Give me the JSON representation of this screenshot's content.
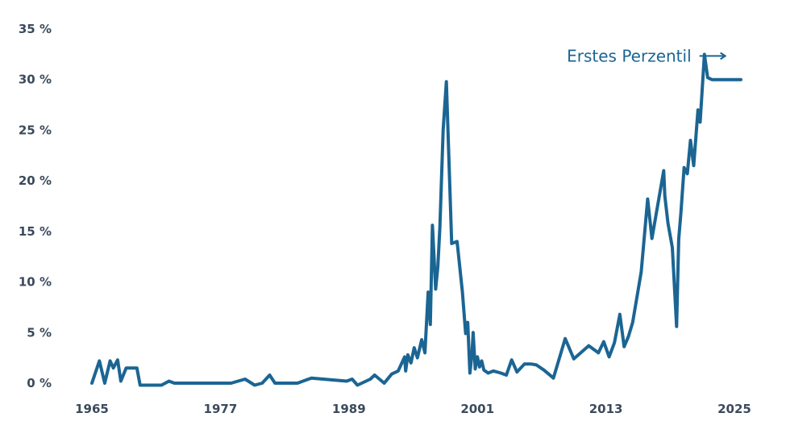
{
  "chart_data": {
    "type": "line",
    "title": "",
    "xlabel": "",
    "ylabel": "",
    "x_ticks": [
      "1965",
      "1977",
      "1989",
      "2001",
      "2013",
      "2025"
    ],
    "y_ticks": [
      "0 %",
      "5 %",
      "10 %",
      "15 %",
      "20 %",
      "25 %",
      "30 %",
      "35 %"
    ],
    "xlim": [
      1965,
      2025
    ],
    "ylim": [
      0,
      35
    ],
    "grid": false,
    "line_color": "#1b6593",
    "annotation": {
      "text": "Erstes Perzentil",
      "points_to": [
        2025.5,
        32.5
      ]
    },
    "series": [
      {
        "x": [
          1965.0,
          1965.7,
          1966.2,
          1966.7,
          1967.0,
          1967.4,
          1967.7,
          1968.2,
          1969.2,
          1969.5,
          1971.5,
          1972.2,
          1972.7,
          1974.5,
          1978.0,
          1979.3,
          1980.2,
          1980.9,
          1981.6,
          1982.1,
          1984.2,
          1985.5,
          1988.8,
          1989.3,
          1989.8,
          1991.0,
          1991.4,
          1992.3,
          1993.0,
          1993.6,
          1994.2,
          1994.3,
          1994.5,
          1994.8,
          1995.1,
          1995.4,
          1995.8,
          1996.1,
          1996.4,
          1996.6,
          1996.8,
          1997.1,
          1997.3,
          1997.5,
          1997.8,
          1998.1,
          1998.6,
          1999.1,
          1999.6,
          1999.9,
          2000.1,
          2000.3,
          2000.5,
          2000.6,
          2000.8,
          2001.0,
          2001.2,
          2001.4,
          2001.6,
          2002.0,
          2002.5,
          2003.2,
          2003.7,
          2004.2,
          2004.7,
          2005.4,
          2006.0,
          2006.5,
          2007.2,
          2008.1,
          2009.2,
          2010.0,
          2011.4,
          2012.3,
          2012.8,
          2013.3,
          2013.8,
          2014.3,
          2014.7,
          2015.1,
          2015.5,
          2016.3,
          2016.9,
          2017.3,
          2018.4,
          2018.5,
          2018.8,
          2019.2,
          2019.6,
          2019.8,
          2020.0,
          2020.3,
          2020.6,
          2020.9,
          2021.2,
          2021.6,
          2021.8,
          2022.2,
          2022.5,
          2022.9,
          2023.0,
          2023.3,
          2023.6,
          2023.9,
          2024.2,
          2024.6,
          2024.8,
          2025.2,
          2025.6
        ],
        "values": [
          0.0,
          2.2,
          0.0,
          2.2,
          1.5,
          2.3,
          0.2,
          1.5,
          1.5,
          -0.2,
          -0.2,
          0.2,
          0.0,
          0.0,
          0.0,
          0.4,
          -0.2,
          0.0,
          0.8,
          0.0,
          0.0,
          0.5,
          0.2,
          0.4,
          -0.2,
          0.4,
          0.8,
          0.0,
          0.9,
          1.2,
          2.6,
          1.2,
          2.8,
          2.0,
          3.5,
          2.5,
          4.3,
          3.0,
          9.0,
          5.8,
          15.6,
          9.3,
          11.5,
          15.5,
          25.0,
          29.8,
          13.8,
          14.0,
          9.0,
          4.9,
          6.0,
          1.0,
          3.0,
          5.0,
          1.4,
          2.6,
          1.6,
          2.2,
          1.3,
          1.0,
          1.2,
          1.0,
          0.8,
          2.3,
          1.1,
          1.9,
          1.9,
          1.8,
          1.3,
          0.5,
          4.4,
          2.4,
          3.7,
          3.0,
          4.1,
          2.6,
          4.0,
          6.8,
          3.6,
          4.6,
          6.0,
          11.0,
          18.2,
          14.3,
          21.0,
          18.5,
          15.8,
          13.4,
          5.6,
          14.2,
          16.8,
          21.3,
          20.7,
          24.0,
          21.5,
          27.0,
          25.8,
          32.5,
          30.2,
          30.0,
          30.0,
          30.0,
          30.0,
          30.0,
          30.0,
          30.0,
          30.0,
          30.0,
          30.0
        ]
      }
    ]
  }
}
